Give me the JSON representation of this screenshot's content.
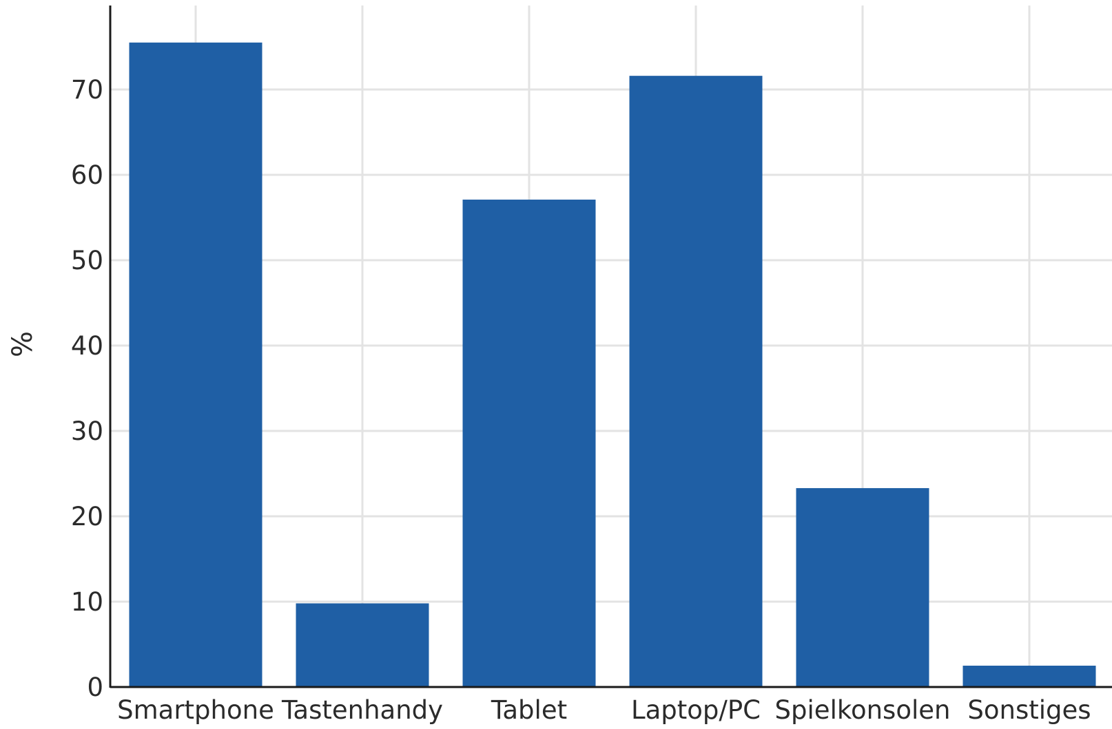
{
  "chart_data": {
    "type": "bar",
    "categories": [
      "Smartphone",
      "Tastenhandy",
      "Tablet",
      "Laptop/PC",
      "Spielkonsolen",
      "Sonstiges"
    ],
    "values": [
      75.5,
      9.8,
      57.1,
      71.6,
      23.3,
      2.5
    ],
    "xlabel": "",
    "ylabel": "%",
    "ylim": [
      0,
      80
    ],
    "yticks": [
      0,
      10,
      20,
      30,
      40,
      50,
      60,
      70
    ],
    "grid": true,
    "bar_color": "#1f5fa5"
  }
}
